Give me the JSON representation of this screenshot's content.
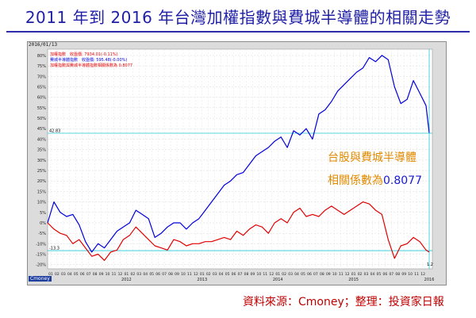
{
  "title": "2011 年到 2016 年台灣加權指數與費城半導體的相關走勢",
  "source": "資料來源：Cmoney；整理：投資家日報",
  "watermark": "Cmoney",
  "colors": {
    "title": "#1f1fa6",
    "blue_series": "#0000dd",
    "red_series": "#e00000",
    "annotation_orange": "#e08a00",
    "annotation_blue": "#1a1acc",
    "cyan_ref": "#20c8d8",
    "plot_bg": "#ffffff",
    "frame_bg": "#dcdcdc"
  },
  "chart_data": {
    "type": "line",
    "date_label": "2016/01/13",
    "legend": [
      {
        "text": "加權指數　收盤價: 7934.01(-0.11%)",
        "color": "#e00000"
      },
      {
        "text": "費城半導體指數　收盤價: 595.48(-0.00%)",
        "color": "#0000dd"
      },
      {
        "text": "加權指數與費城半導體指數相關係數為 0.8077",
        "color": "#e00000"
      }
    ],
    "annotation": {
      "line1": "台股與費城半導體",
      "line2_prefix": "相關係數為",
      "line2_value": "0.8077"
    },
    "correlation": 0.8077,
    "y_ticks": [
      "80%",
      "75%",
      "70%",
      "65%",
      "60%",
      "55%",
      "50%",
      "45%",
      "40%",
      "35%",
      "30%",
      "25%",
      "20%",
      "15%",
      "10%",
      "5%",
      "0%",
      "-5%",
      "-10%",
      "-15%",
      "-20%"
    ],
    "y_range": [
      -22,
      83
    ],
    "right_tick_label": "1.2",
    "ref_lines": [
      {
        "value": 42.83,
        "label": "42.83"
      },
      {
        "value": -13.3,
        "label": "-13.3"
      }
    ],
    "month_ticks": [
      "01",
      "02",
      "03",
      "04",
      "05",
      "06",
      "07",
      "08",
      "09",
      "10",
      "11",
      "12",
      "01",
      "02",
      "03",
      "04",
      "05",
      "06",
      "07",
      "08",
      "09",
      "10",
      "11",
      "12",
      "01",
      "02",
      "03",
      "04",
      "05",
      "06",
      "07",
      "08",
      "09",
      "10",
      "11",
      "12",
      "01",
      "02",
      "03",
      "04",
      "05",
      "06",
      "07",
      "08",
      "09",
      "10",
      "11",
      "12",
      "01",
      "02",
      "03",
      "04",
      "05",
      "06",
      "07",
      "08",
      "09",
      "10",
      "11",
      "12"
    ],
    "year_labels": [
      "2012",
      "2013",
      "2014",
      "2015",
      "2016"
    ],
    "x_range": [
      0,
      61
    ],
    "series": [
      {
        "name": "費城半導體指數",
        "color": "#0000dd",
        "x": [
          0,
          1,
          2,
          3,
          4,
          5,
          6,
          7,
          8,
          9,
          10,
          11,
          12,
          13,
          14,
          15,
          16,
          17,
          18,
          19,
          20,
          21,
          22,
          23,
          24,
          25,
          26,
          27,
          28,
          29,
          30,
          31,
          32,
          33,
          34,
          35,
          36,
          37,
          38,
          39,
          40,
          41,
          42,
          43,
          44,
          45,
          46,
          47,
          48,
          49,
          50,
          51,
          52,
          53,
          54,
          55,
          56,
          57,
          58,
          59,
          60,
          60.5
        ],
        "values": [
          0,
          10,
          5,
          3,
          4,
          -1,
          -9,
          -14,
          -10,
          -12,
          -8,
          -4,
          -2,
          0,
          6,
          4,
          2,
          -7,
          -5,
          -2,
          0,
          0,
          -3,
          0,
          2,
          6,
          10,
          14,
          18,
          20,
          23,
          24,
          28,
          32,
          34,
          36,
          39,
          41,
          36,
          44,
          42,
          45,
          40,
          52,
          54,
          58,
          63,
          66,
          69,
          72,
          74,
          79,
          77,
          80,
          78,
          65,
          57,
          59,
          68,
          62,
          56,
          43
        ]
      },
      {
        "name": "加權指數",
        "color": "#e00000",
        "x": [
          0,
          1,
          2,
          3,
          4,
          5,
          6,
          7,
          8,
          9,
          10,
          11,
          12,
          13,
          14,
          15,
          16,
          17,
          18,
          19,
          20,
          21,
          22,
          23,
          24,
          25,
          26,
          27,
          28,
          29,
          30,
          31,
          32,
          33,
          34,
          35,
          36,
          37,
          38,
          39,
          40,
          41,
          42,
          43,
          44,
          45,
          46,
          47,
          48,
          49,
          50,
          51,
          52,
          53,
          54,
          55,
          56,
          57,
          58,
          59,
          60,
          60.5
        ],
        "values": [
          0,
          -3,
          -5,
          -6,
          -10,
          -8,
          -12,
          -16,
          -15,
          -18,
          -14,
          -13,
          -8,
          -6,
          -2,
          -5,
          -8,
          -11,
          -12,
          -13,
          -8,
          -9,
          -11,
          -10,
          -10,
          -9,
          -9,
          -8,
          -7,
          -8,
          -4,
          -6,
          -3,
          -1,
          -2,
          -5,
          0,
          2,
          0,
          5,
          7,
          3,
          4,
          3,
          6,
          8,
          6,
          4,
          6,
          8,
          10,
          9,
          6,
          4,
          -8,
          -17,
          -11,
          -10,
          -7,
          -9,
          -13,
          -14
        ]
      }
    ]
  }
}
